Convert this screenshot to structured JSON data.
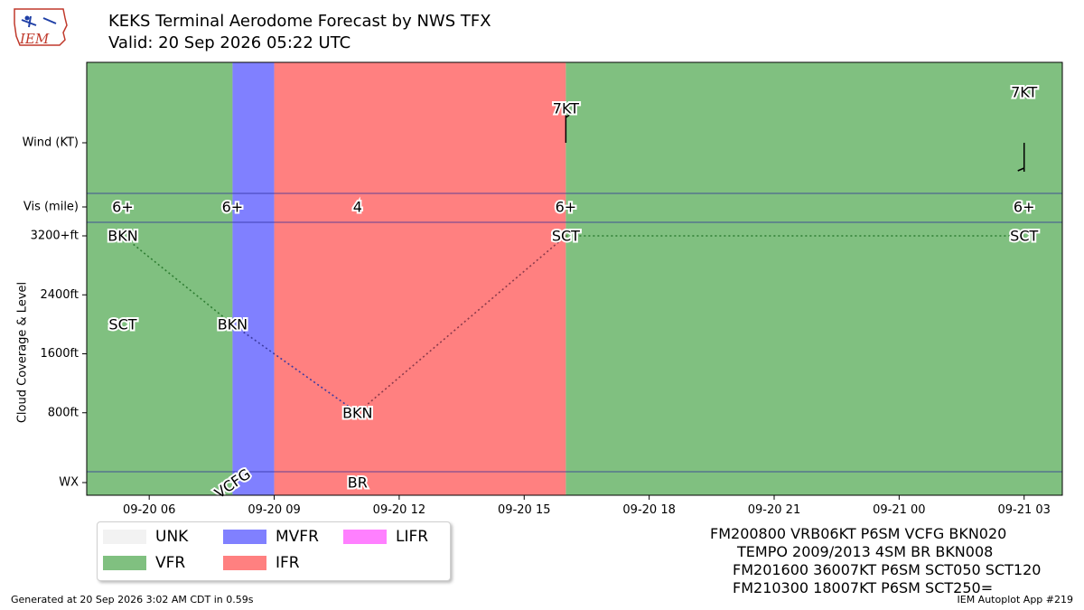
{
  "header": {
    "logo_text": "IEM",
    "title_line1": "KEKS Terminal Aerodome Forecast by NWS TFX",
    "title_line2": "Valid: 20 Sep 2026 05:22 UTC"
  },
  "legend": {
    "items": [
      {
        "label": "UNK",
        "color": "#f2f2f2"
      },
      {
        "label": "VFR",
        "color": "#80c080"
      },
      {
        "label": "MVFR",
        "color": "#8080ff"
      },
      {
        "label": "IFR",
        "color": "#ff8080"
      },
      {
        "label": "LIFR",
        "color": "#ff80ff"
      }
    ]
  },
  "taf_text": [
    "FM200800 VRB06KT P6SM VCFG BKN020",
    "TEMPO 2009/2013 4SM BR BKN008",
    "FM201600 36007KT P6SM SCT050 SCT120",
    "FM210300 18007KT P6SM SCT250="
  ],
  "footer": {
    "left": "Generated at 20 Sep 2026 3:02 AM CDT in 0.59s",
    "right": "IEM Autoplot App #219"
  },
  "chart_data": {
    "type": "timeline",
    "x_unit": "hours UTC",
    "x_range": [
      "09-20 04:30",
      "09-21 03:55"
    ],
    "x_ticks": [
      "09-20 06",
      "09-20 09",
      "09-20 12",
      "09-20 15",
      "09-20 18",
      "09-20 21",
      "09-21 00",
      "09-21 03"
    ],
    "row_labels": {
      "wind": "Wind (KT)",
      "vis": "Vis (mile)",
      "wx": "WX"
    },
    "ylabel": "Cloud Coverage & Level",
    "cloud_ticks": [
      "800ft",
      "1600ft",
      "2400ft",
      "3200+ft"
    ],
    "category_periods": [
      {
        "start": "09-20 04:30",
        "end": "09-20 08:00",
        "category": "VFR"
      },
      {
        "start": "09-20 08:00",
        "end": "09-20 09:00",
        "category": "MVFR"
      },
      {
        "start": "09-20 09:00",
        "end": "09-20 16:00",
        "category": "IFR"
      },
      {
        "start": "09-20 16:00",
        "end": "09-21 03:55",
        "category": "VFR"
      }
    ],
    "visibility": [
      {
        "time": "09-20 05:22",
        "label": "6+"
      },
      {
        "time": "09-20 08:00",
        "label": "6+"
      },
      {
        "time": "09-20 11:00",
        "label": "4"
      },
      {
        "time": "09-20 16:00",
        "label": "6+"
      },
      {
        "time": "09-21 03:00",
        "label": "6+"
      }
    ],
    "clouds": [
      {
        "time": "09-20 05:22",
        "cover": "BKN",
        "level_ft": 3200
      },
      {
        "time": "09-20 05:22",
        "cover": "SCT",
        "level_ft": 2000
      },
      {
        "time": "09-20 08:00",
        "cover": "BKN",
        "level_ft": 2000
      },
      {
        "time": "09-20 11:00",
        "cover": "BKN",
        "level_ft": 800
      },
      {
        "time": "09-20 16:00",
        "cover": "SCT",
        "level_ft": 3200
      },
      {
        "time": "09-21 03:00",
        "cover": "SCT",
        "level_ft": 3200
      }
    ],
    "cloud_lines": [
      {
        "from": [
          "09-20 05:22",
          3200
        ],
        "to": [
          "09-20 08:00",
          2000
        ],
        "color": "#2e7d32"
      },
      {
        "from": [
          "09-20 08:00",
          2000
        ],
        "to": [
          "09-20 11:00",
          800
        ],
        "color": "#3a3aa0"
      },
      {
        "from": [
          "09-20 11:00",
          800
        ],
        "to": [
          "09-20 16:00",
          3200
        ],
        "color": "#8a3a4a"
      },
      {
        "from": [
          "09-20 16:00",
          3200
        ],
        "to": [
          "09-21 03:00",
          3200
        ],
        "color": "#2e7d32"
      }
    ],
    "wind": [
      {
        "time": "09-20 16:00",
        "label": "7KT",
        "direction_deg": 360,
        "speed_kt": 7
      },
      {
        "time": "09-21 03:00",
        "label": "7KT",
        "direction_deg": 180,
        "speed_kt": 7
      }
    ],
    "weather": [
      {
        "time": "09-20 08:00",
        "label": "VCFG"
      },
      {
        "time": "09-20 11:00",
        "label": "BR"
      }
    ]
  }
}
